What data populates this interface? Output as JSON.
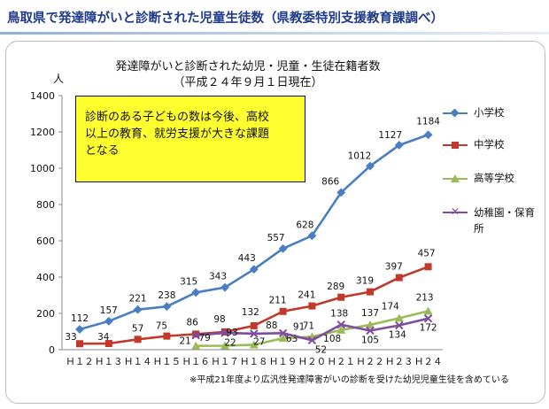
{
  "header": {
    "title": "鳥取県で発達障がいと診断された児童生徒数（県教委特別支援教育課調べ）"
  },
  "chart_title": {
    "line1": "発達障がいと診断された幼児・児童・生徒在籍者数",
    "line2": "（平成２４年９月１日現在）"
  },
  "unit": "人",
  "callout": {
    "line1": "診断のある子どもの数は今後、高校",
    "line2": "以上の教育、就労支援が大きな課題",
    "line3": "となる"
  },
  "footnote": "※平成21年度より広汎性発達障害がいの診断を受けた幼児児童生徒を含めている",
  "chart_data": {
    "type": "line",
    "categories": [
      "H12",
      "H13",
      "H14",
      "H15",
      "H16",
      "H17",
      "H18",
      "H19",
      "H20",
      "H21",
      "H22",
      "H23",
      "H24"
    ],
    "ylim": [
      0,
      1400
    ],
    "yticks": [
      0,
      200,
      400,
      600,
      800,
      1000,
      1200,
      1400
    ],
    "ylabel": "人",
    "grid": false,
    "legend": "right",
    "series": [
      {
        "name": "小学校",
        "color": "#4a7ec4",
        "marker": "diamond",
        "values": [
          112,
          157,
          221,
          238,
          315,
          343,
          443,
          557,
          628,
          866,
          1012,
          1127,
          1184
        ]
      },
      {
        "name": "中学校",
        "color": "#c0392b",
        "marker": "square",
        "values": [
          33,
          34,
          57,
          75,
          86,
          98,
          132,
          211,
          241,
          289,
          319,
          397,
          457
        ]
      },
      {
        "name": "高等学校",
        "color": "#9bbb59",
        "marker": "triangle",
        "values": [
          null,
          null,
          null,
          null,
          21,
          22,
          27,
          63,
          71,
          108,
          137,
          174,
          213
        ]
      },
      {
        "name": "幼稚園・保育所",
        "color": "#7f4c9e",
        "marker": "x",
        "values": [
          null,
          null,
          null,
          null,
          79,
          93,
          88,
          91,
          52,
          138,
          105,
          134,
          172
        ]
      }
    ]
  },
  "legend_items": [
    {
      "label": "小学校"
    },
    {
      "label": "中学校"
    },
    {
      "label": "高等学校"
    },
    {
      "label": "幼稚園・保育所"
    }
  ],
  "x_tick_labels": [
    "Ｈ１２",
    "Ｈ１３",
    "Ｈ１４",
    "Ｈ１５",
    "Ｈ１６",
    "Ｈ１７",
    "Ｈ１８",
    "Ｈ１９",
    "Ｈ２０",
    "Ｈ２１",
    "Ｈ２２",
    "Ｈ２３",
    "Ｈ２４"
  ]
}
